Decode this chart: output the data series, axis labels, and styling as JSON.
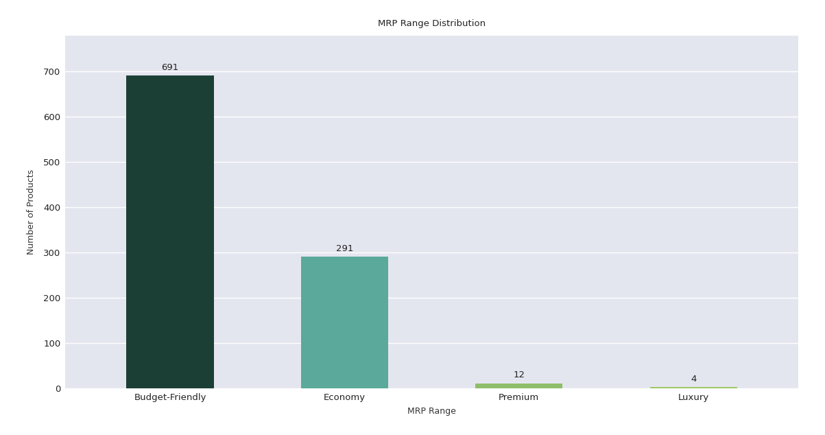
{
  "categories": [
    "Budget-Friendly",
    "Economy",
    "Premium",
    "Luxury"
  ],
  "values": [
    691,
    291,
    12,
    4
  ],
  "bar_colors": [
    "#1c3f35",
    "#5ba99a",
    "#8fbe6a",
    "#9ec865"
  ],
  "title": "MRP Range Distribution",
  "xlabel": "MRP Range",
  "ylabel": "Number of Products",
  "ylim": [
    0,
    780
  ],
  "yticks": [
    0,
    100,
    200,
    300,
    400,
    500,
    600,
    700
  ],
  "axes_bg": "#e4e6ef",
  "fig_bg": "#ffffff",
  "title_fontsize": 9.5,
  "label_fontsize": 9,
  "tick_fontsize": 9.5,
  "bar_label_fontsize": 9.5,
  "bar_width": 0.5
}
